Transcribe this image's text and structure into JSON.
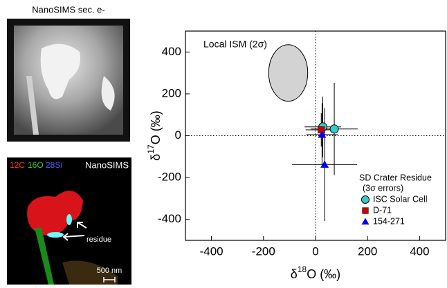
{
  "panels": {
    "sem_label": "NanoSIMS sec. e-",
    "map_channels": [
      "12C",
      "16O",
      "28Si"
    ],
    "map_label": "NanoSIMS",
    "arrow_label": "residue",
    "scale_bar": "500 nm"
  },
  "chart_data": {
    "type": "scatter",
    "x_label": {
      "prefix": "δ",
      "sup": "18",
      "suffix": "O (‰)"
    },
    "y_label": {
      "prefix": "δ",
      "sup": "17",
      "suffix": "O (‰)"
    },
    "xlim": [
      -500,
      500
    ],
    "ylim": [
      -500,
      500
    ],
    "xticks": [
      -400,
      -200,
      0,
      200,
      400
    ],
    "yticks": [
      -400,
      -200,
      0,
      200,
      400
    ],
    "reference_lines": {
      "x": 0,
      "y": 0
    },
    "ellipse": {
      "label": "Local ISM (2σ)",
      "cx": -105,
      "cy": 300,
      "rx": 75,
      "ry": 135,
      "color": "#d3d3d3"
    },
    "legend_title": "SD Crater Residue",
    "legend_subtitle": "(3σ errors)",
    "series": [
      {
        "name": "ISC Solar Cell",
        "color": "#33cccc",
        "marker": "circle",
        "x": [
          28,
          72
        ],
        "values": [
          42,
          32
        ],
        "xerr": [
          70,
          90
        ],
        "yerr": [
          145,
          220
        ]
      },
      {
        "name": "D-71",
        "color": "#cc0000",
        "marker": "square",
        "x": [
          22
        ],
        "values": [
          28
        ],
        "xerr": [
          60
        ],
        "yerr": [
          80
        ]
      },
      {
        "name": "154-271",
        "color": "#0000ee",
        "marker": "triangle",
        "x": [
          25,
          35
        ],
        "values": [
          5,
          -138
        ],
        "xerr": [
          60,
          125
        ],
        "yerr": [
          150,
          270
        ]
      }
    ]
  }
}
